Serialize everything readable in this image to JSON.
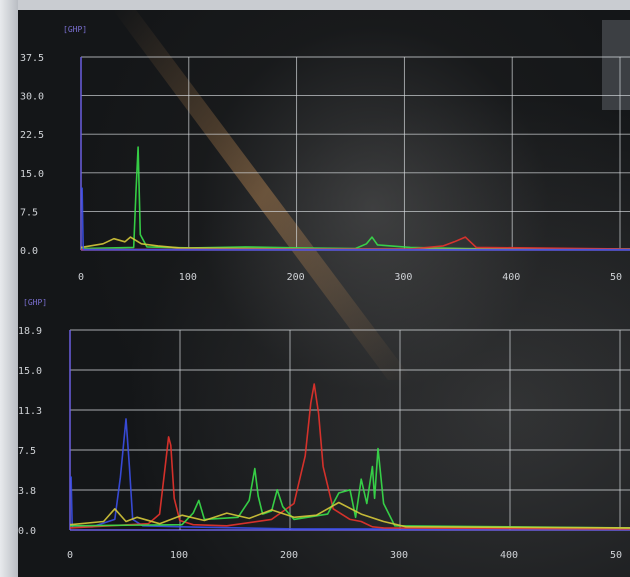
{
  "colors": {
    "grid": "#d9dde0",
    "axis": "#6b5fe0",
    "green": "#39e04a",
    "red": "#e8332c",
    "blue": "#3b4fe8",
    "yellow": "#d6c93a"
  },
  "chart_data": [
    {
      "type": "line",
      "unit_label": "[GHP]",
      "ylim": [
        0,
        37.5
      ],
      "xlim": [
        0,
        500
      ],
      "y_ticks": [
        "37.5",
        "30.0",
        "22.5",
        "15.0",
        "7.5",
        "0.0"
      ],
      "x_ticks": [
        "0",
        "100",
        "200",
        "300",
        "400",
        "50"
      ],
      "series": [
        {
          "color": "green",
          "x": [
            0,
            48,
            50,
            52,
            54,
            60,
            100,
            150,
            200,
            250,
            260,
            265,
            270,
            300,
            350,
            400,
            500
          ],
          "y": [
            0.3,
            0.5,
            11,
            20,
            3,
            0.6,
            0.4,
            0.6,
            0.4,
            0.3,
            1.2,
            2.5,
            1,
            0.5,
            0.3,
            0.2,
            0.2
          ]
        },
        {
          "color": "yellow",
          "x": [
            0,
            20,
            30,
            40,
            45,
            55,
            70,
            90,
            200,
            500
          ],
          "y": [
            0.5,
            1.2,
            2.2,
            1.6,
            2.5,
            1.2,
            0.8,
            0.4,
            0.2,
            0.2
          ]
        },
        {
          "color": "red",
          "x": [
            0,
            300,
            330,
            340,
            350,
            360,
            500
          ],
          "y": [
            0.1,
            0.2,
            0.8,
            1.6,
            2.5,
            0.5,
            0.2
          ]
        },
        {
          "color": "blue",
          "x": [
            0,
            1,
            2,
            3,
            500
          ],
          "y": [
            12,
            12,
            0.2,
            0.1,
            0.1
          ]
        }
      ]
    },
    {
      "type": "line",
      "unit_label": "[GHP]",
      "ylim": [
        0,
        18.9
      ],
      "xlim": [
        0,
        500
      ],
      "y_ticks": [
        "18.9",
        "15.0",
        "11.3",
        "7.5",
        "3.8",
        "0.0"
      ],
      "x_ticks": [
        "0",
        "100",
        "200",
        "300",
        "400",
        "50"
      ],
      "series": [
        {
          "color": "blue",
          "x": [
            0,
            1,
            2,
            3,
            20,
            40,
            45,
            50,
            53,
            56,
            65,
            100,
            200,
            500
          ],
          "y": [
            5,
            5,
            0.3,
            0.4,
            0.3,
            1.0,
            5,
            10.5,
            6,
            1.0,
            0.4,
            0.3,
            0.1,
            0.1
          ]
        },
        {
          "color": "red",
          "x": [
            0,
            70,
            80,
            85,
            88,
            90,
            93,
            98,
            110,
            140,
            180,
            200,
            210,
            215,
            218,
            222,
            226,
            235,
            250,
            260,
            270,
            280,
            500
          ],
          "y": [
            0.2,
            0.6,
            1.5,
            6,
            8.8,
            8,
            3,
            0.9,
            0.5,
            0.4,
            1.0,
            2.5,
            7,
            12,
            13.8,
            11,
            6,
            2,
            1,
            0.8,
            0.3,
            0.2,
            0.1
          ]
        },
        {
          "color": "green",
          "x": [
            0,
            100,
            110,
            115,
            120,
            150,
            160,
            165,
            168,
            172,
            180,
            185,
            190,
            200,
            230,
            240,
            250,
            255,
            260,
            265,
            270,
            272,
            275,
            280,
            290,
            500
          ],
          "y": [
            0.4,
            0.5,
            1.6,
            2.8,
            1.0,
            1.2,
            2.8,
            5.8,
            3.2,
            1.5,
            1.8,
            3.8,
            2.2,
            1.0,
            1.5,
            3.5,
            3.8,
            1.2,
            4.8,
            2.5,
            6,
            3.0,
            7.7,
            2.5,
            0.4,
            0.2
          ]
        },
        {
          "color": "yellow",
          "x": [
            0,
            30,
            40,
            50,
            60,
            80,
            100,
            120,
            140,
            160,
            180,
            200,
            220,
            240,
            260,
            280,
            300,
            500
          ],
          "y": [
            0.5,
            0.8,
            2.0,
            0.8,
            1.2,
            0.6,
            1.4,
            0.9,
            1.6,
            1.1,
            1.9,
            1.2,
            1.4,
            2.6,
            1.5,
            0.8,
            0.3,
            0.2
          ]
        }
      ]
    }
  ]
}
